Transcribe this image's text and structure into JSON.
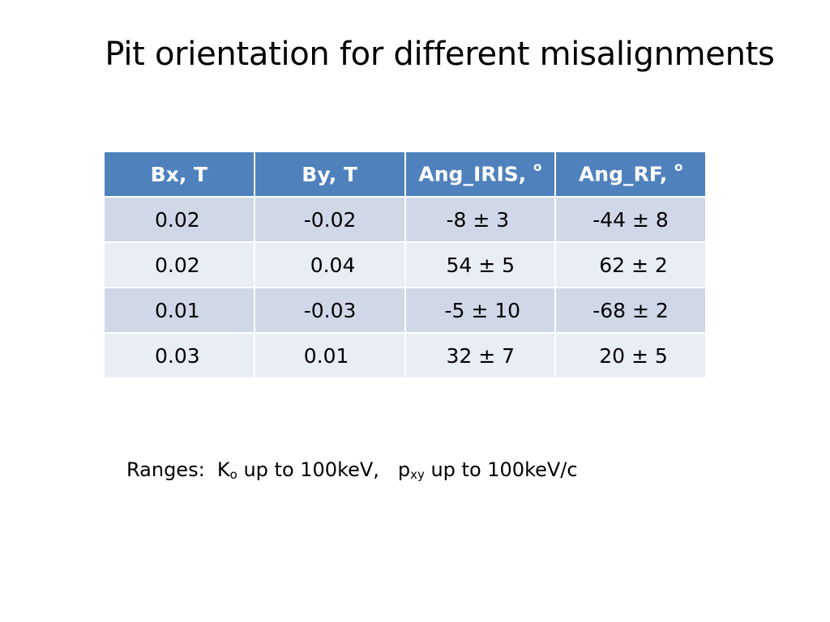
{
  "title": "Pit orientation for different misalignments",
  "table": {
    "headers": [
      {
        "label": "Bx, T",
        "sup": ""
      },
      {
        "label": "By, T",
        "sup": ""
      },
      {
        "label": "Ang_IRIS, ",
        "sup": "o"
      },
      {
        "label": "Ang_RF, ",
        "sup": "o"
      }
    ],
    "rows": [
      [
        "0.02",
        "-0.02",
        "-8 ± 3",
        "-44 ± 8"
      ],
      [
        "0.02",
        " 0.04",
        "54 ± 5",
        " 62 ± 2"
      ],
      [
        "0.01",
        "-0.03",
        "-5 ± 10",
        "-68 ± 2"
      ],
      [
        "0.03",
        "0.01",
        "32 ± 7",
        " 20 ± 5"
      ]
    ],
    "colors": {
      "header_bg": "#4f81bd",
      "header_text": "#ffffff",
      "row_odd_bg": "#d0d8e8",
      "row_even_bg": "#e9edf4"
    }
  },
  "note": {
    "prefix": "Ranges:  K",
    "k_sub": "o",
    "middle": " up to 100keV,   p",
    "p_sub": "xy",
    "suffix": " up to 100keV/c"
  }
}
